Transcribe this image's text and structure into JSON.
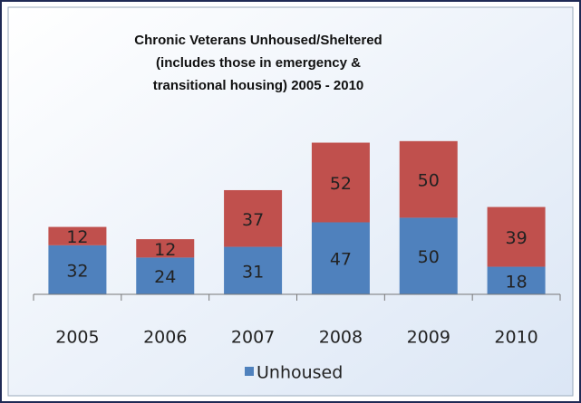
{
  "chart_data": {
    "type": "bar",
    "stacked": true,
    "title": [
      "Chronic Veterans Unhoused/Sheltered",
      "(includes those in emergency &",
      "transitional housing) 2005 - 2010"
    ],
    "categories": [
      "2005",
      "2006",
      "2007",
      "2008",
      "2009",
      "2010"
    ],
    "series": [
      {
        "name": "Unhoused",
        "color": "#4f81bd",
        "values": [
          32,
          24,
          31,
          47,
          50,
          18
        ]
      },
      {
        "color": "#c0504d",
        "values": [
          12,
          12,
          37,
          52,
          50,
          39
        ]
      }
    ],
    "ylim": [
      0,
      120
    ],
    "legend": "bottom"
  }
}
